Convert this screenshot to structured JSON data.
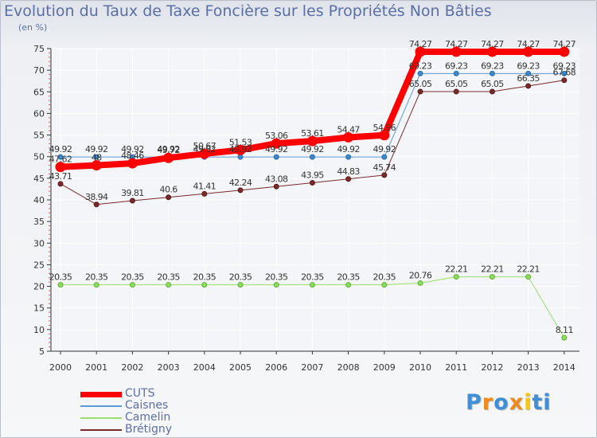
{
  "title": "Evolution du Taux de Taxe Foncière sur les Propriétés Non Bâties",
  "unit_label": "(en %)",
  "logo": {
    "text": "Proxiti",
    "colors": [
      "#3f8ed6",
      "#f08a1c",
      "#3f8ed6",
      "#f08a1c",
      "#f5c518",
      "#3f8ed6",
      "#3f8ed6"
    ]
  },
  "chart_data": {
    "type": "line",
    "x": [
      "2000",
      "2001",
      "2002",
      "2003",
      "2004",
      "2005",
      "2006",
      "2007",
      "2008",
      "2009",
      "2010",
      "2011",
      "2012",
      "2013",
      "2014"
    ],
    "ylim": [
      5,
      75
    ],
    "yticks": [
      5,
      10,
      15,
      20,
      25,
      30,
      35,
      40,
      45,
      50,
      55,
      60,
      65,
      70,
      75
    ],
    "grid": true,
    "legend_position": "bottom-left",
    "series": [
      {
        "name": "CUTS",
        "color": "#ff0000",
        "width": 8,
        "values": [
          47.62,
          48,
          48.46,
          49.72,
          50.67,
          51.53,
          53.06,
          53.61,
          54.47,
          54.96,
          74.27,
          74.27,
          74.27,
          74.27,
          74.27
        ],
        "labels": [
          "47.62",
          "48",
          "48.46",
          "49.72",
          "50.67",
          "51.53",
          "53.06",
          "53.61",
          "54.47",
          "54.96",
          "74.27",
          "74.27",
          "74.27",
          "74.27",
          "74.27"
        ]
      },
      {
        "name": "Caisnes",
        "color": "#5b9bd5",
        "width": 1,
        "values": [
          49.92,
          49.92,
          49.92,
          49.92,
          49.92,
          49.92,
          49.92,
          49.92,
          49.92,
          49.92,
          69.23,
          69.23,
          69.23,
          69.23,
          69.23
        ],
        "labels": [
          "49.92",
          "49.92",
          "49.92",
          "49.92",
          "49.92",
          "49.92",
          "49.92",
          "49.92",
          "49.92",
          "49.92",
          "69.23",
          "69.23",
          "69.23",
          "69.23",
          "69.23"
        ]
      },
      {
        "name": "Camelin",
        "color": "#99e06e",
        "width": 1,
        "values": [
          20.35,
          20.35,
          20.35,
          20.35,
          20.35,
          20.35,
          20.35,
          20.35,
          20.35,
          20.35,
          20.76,
          22.21,
          22.21,
          22.21,
          8.11
        ],
        "labels": [
          "20.35",
          "20.35",
          "20.35",
          "20.35",
          "20.35",
          "20.35",
          "20.35",
          "20.35",
          "20.35",
          "20.35",
          "20.76",
          "22.21",
          "22.21",
          "22.21",
          "8.11"
        ]
      },
      {
        "name": "Brétigny",
        "color": "#7a2a2a",
        "width": 1,
        "values": [
          43.71,
          38.94,
          39.81,
          40.6,
          41.41,
          42.24,
          43.08,
          43.95,
          44.83,
          45.74,
          65.05,
          65.05,
          65.05,
          66.35,
          67.68
        ],
        "labels": [
          "43.71",
          "38.94",
          "39.81",
          "40.6",
          "41.41",
          "42.24",
          "43.08",
          "43.95",
          "44.83",
          "45.74",
          "65.05",
          "65.05",
          "65.05",
          "66.35",
          "67.68"
        ]
      }
    ]
  }
}
